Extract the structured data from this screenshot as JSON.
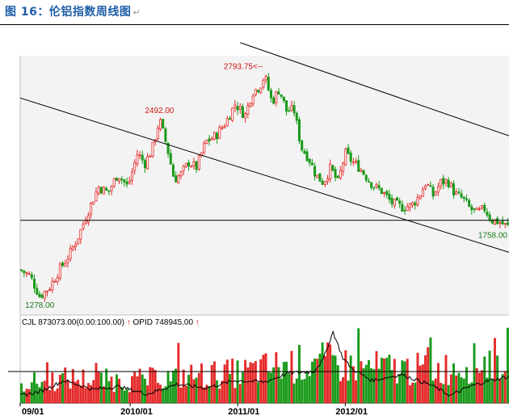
{
  "page": {
    "title": "图 16：伦铝指数周线图",
    "title_mark": "↵"
  },
  "chart_data": [
    {
      "type": "candlestick",
      "title": "",
      "x_ticks": [
        {
          "label": "09/01",
          "t": 0.0
        },
        {
          "label": "2010/01",
          "t": 0.225
        },
        {
          "label": "2011/01",
          "t": 0.445
        },
        {
          "label": "2012/01",
          "t": 0.665
        }
      ],
      "ylim": [
        1150,
        2930
      ],
      "price_path": [
        [
          0.0,
          1460
        ],
        [
          0.02,
          1420
        ],
        [
          0.04,
          1278
        ],
        [
          0.06,
          1340
        ],
        [
          0.08,
          1460
        ],
        [
          0.1,
          1560
        ],
        [
          0.12,
          1700
        ],
        [
          0.14,
          1870
        ],
        [
          0.16,
          2030
        ],
        [
          0.18,
          1990
        ],
        [
          0.2,
          2120
        ],
        [
          0.22,
          2030
        ],
        [
          0.24,
          2260
        ],
        [
          0.255,
          2190
        ],
        [
          0.27,
          2290
        ],
        [
          0.285,
          2492
        ],
        [
          0.3,
          2310
        ],
        [
          0.315,
          2080
        ],
        [
          0.33,
          2120
        ],
        [
          0.345,
          2200
        ],
        [
          0.36,
          2160
        ],
        [
          0.38,
          2340
        ],
        [
          0.4,
          2380
        ],
        [
          0.42,
          2470
        ],
        [
          0.44,
          2600
        ],
        [
          0.46,
          2520
        ],
        [
          0.475,
          2680
        ],
        [
          0.49,
          2720
        ],
        [
          0.5,
          2793.75
        ],
        [
          0.515,
          2610
        ],
        [
          0.53,
          2700
        ],
        [
          0.545,
          2550
        ],
        [
          0.56,
          2560
        ],
        [
          0.575,
          2300
        ],
        [
          0.59,
          2230
        ],
        [
          0.605,
          2110
        ],
        [
          0.62,
          2060
        ],
        [
          0.635,
          2160
        ],
        [
          0.65,
          2060
        ],
        [
          0.665,
          2260
        ],
        [
          0.68,
          2200
        ],
        [
          0.695,
          2160
        ],
        [
          0.71,
          2090
        ],
        [
          0.725,
          2030
        ],
        [
          0.74,
          2000
        ],
        [
          0.76,
          1920
        ],
        [
          0.78,
          1890
        ],
        [
          0.8,
          1900
        ],
        [
          0.815,
          1960
        ],
        [
          0.83,
          2060
        ],
        [
          0.845,
          1970
        ],
        [
          0.86,
          2060
        ],
        [
          0.875,
          2070
        ],
        [
          0.89,
          1980
        ],
        [
          0.905,
          1950
        ],
        [
          0.92,
          1880
        ],
        [
          0.935,
          1850
        ],
        [
          0.95,
          1880
        ],
        [
          0.965,
          1800
        ],
        [
          0.98,
          1790
        ],
        [
          0.995,
          1758
        ]
      ],
      "annotations": [
        {
          "text": "2793.75<--",
          "value": 2793.75,
          "t": 0.5,
          "anchor": "end"
        },
        {
          "text": "2492.00",
          "value": 2492,
          "t": 0.285,
          "anchor": "middle"
        },
        {
          "text": "1278.00",
          "value": 1278,
          "t": 0.04,
          "anchor": "middle"
        },
        {
          "text": "1758.00",
          "value": 1758,
          "t": 0.995,
          "anchor": "end"
        }
      ],
      "trendlines": [
        {
          "name": "upper-channel-line",
          "from": [
            0.45,
            3020
          ],
          "to": [
            1.0,
            2380
          ]
        },
        {
          "name": "middle-trendline",
          "from": [
            0.0,
            2640
          ],
          "to": [
            1.0,
            1580
          ]
        },
        {
          "name": "support-line",
          "from": [
            0.0,
            1800
          ],
          "to": [
            1.0,
            1800
          ]
        }
      ],
      "colors": {
        "up": "#e52b2b",
        "down": "#1a9a1a",
        "annotation": "#d01515",
        "line": "#000000"
      }
    },
    {
      "type": "volume_bar",
      "legend": [
        {
          "text": "CJL",
          "color": "#000000"
        },
        {
          "text": "873073.00(0.00:100.00)",
          "color": "#000000"
        },
        {
          "text": "↑",
          "color": "#d01515"
        },
        {
          "text": "OPID",
          "color": "#000000"
        },
        {
          "text": "748945.00",
          "color": "#000000"
        },
        {
          "text": "↑",
          "color": "#d01515"
        }
      ],
      "volume_profile": [
        [
          0.0,
          0.35
        ],
        [
          0.1,
          0.45
        ],
        [
          0.22,
          0.4
        ],
        [
          0.35,
          0.5
        ],
        [
          0.45,
          0.55
        ],
        [
          0.55,
          0.7
        ],
        [
          0.62,
          0.75
        ],
        [
          0.7,
          0.65
        ],
        [
          0.85,
          0.6
        ],
        [
          1.0,
          0.85
        ]
      ],
      "open_interest_path": [
        [
          0.0,
          0.1
        ],
        [
          0.04,
          0.15
        ],
        [
          0.09,
          0.3
        ],
        [
          0.15,
          0.18
        ],
        [
          0.2,
          0.22
        ],
        [
          0.26,
          0.12
        ],
        [
          0.32,
          0.25
        ],
        [
          0.38,
          0.2
        ],
        [
          0.44,
          0.3
        ],
        [
          0.5,
          0.28
        ],
        [
          0.55,
          0.4
        ],
        [
          0.6,
          0.42
        ],
        [
          0.62,
          0.58
        ],
        [
          0.64,
          0.95
        ],
        [
          0.66,
          0.6
        ],
        [
          0.68,
          0.45
        ],
        [
          0.72,
          0.3
        ],
        [
          0.78,
          0.38
        ],
        [
          0.84,
          0.24
        ],
        [
          0.88,
          0.1
        ],
        [
          0.92,
          0.22
        ],
        [
          0.96,
          0.3
        ],
        [
          1.0,
          0.35
        ]
      ],
      "reference_line_level": 0.42
    }
  ]
}
